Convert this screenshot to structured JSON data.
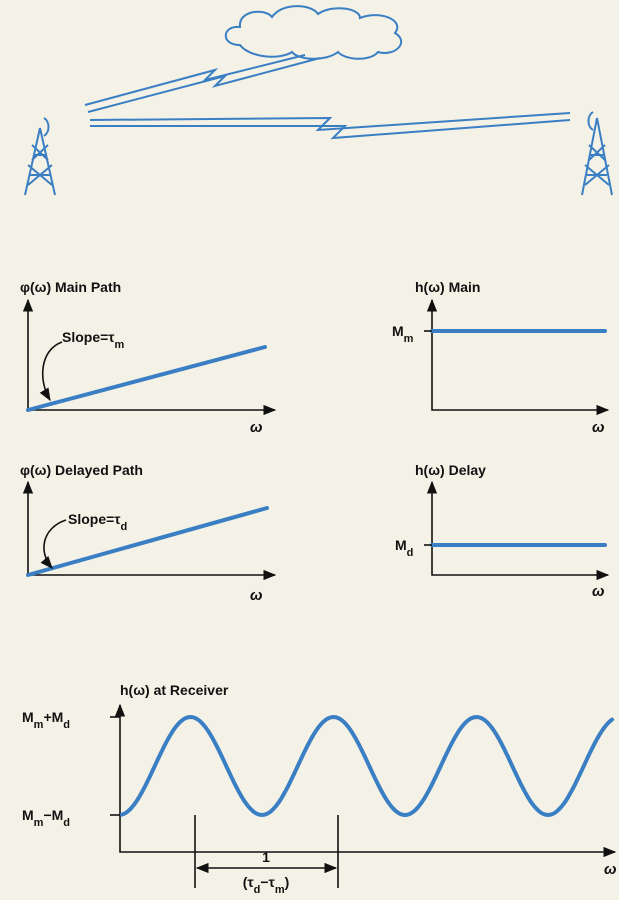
{
  "main_phase": {
    "title": "φ(ω) Main Path",
    "slope": [
      "Slope=τ",
      "m"
    ],
    "x_label": "ω"
  },
  "main_mag": {
    "title": "h(ω) Main",
    "level": [
      "M",
      "m"
    ],
    "x_label": "ω"
  },
  "delay_phase": {
    "title": "φ(ω) Delayed Path",
    "slope": [
      "Slope=τ",
      "d"
    ],
    "x_label": "ω"
  },
  "delay_mag": {
    "title": "h(ω) Delay",
    "level": [
      "M",
      "d"
    ],
    "x_label": "ω"
  },
  "receiver": {
    "title": "h(ω) at Receiver",
    "max": [
      "M",
      "m",
      "+M",
      "d"
    ],
    "min": [
      "M",
      "m",
      "−M",
      "d"
    ],
    "period_num": "1",
    "period_den": [
      "(τ",
      "d",
      "−τ",
      "m",
      ")"
    ],
    "x_label": "ω"
  }
}
